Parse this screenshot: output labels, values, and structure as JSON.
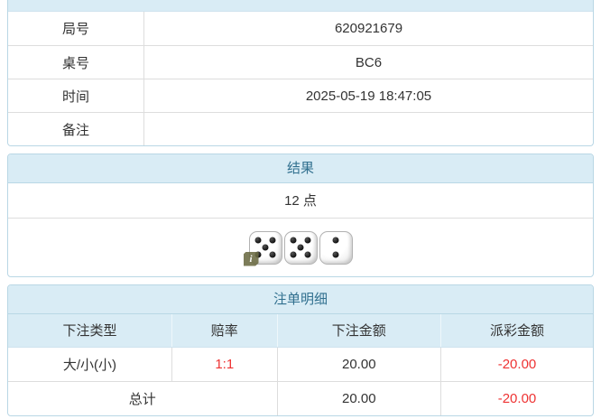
{
  "info_table": {
    "rows": [
      {
        "label": "局号",
        "value": "620921679"
      },
      {
        "label": "桌号",
        "value": "BC6"
      },
      {
        "label": "时间",
        "value": "2025-05-19 18:47:05"
      },
      {
        "label": "备注",
        "value": ""
      }
    ]
  },
  "result_panel": {
    "title": "结果",
    "points": "12 点",
    "dice": [
      5,
      5,
      2
    ],
    "info_badge": "i"
  },
  "bets_panel": {
    "title": "注单明细",
    "columns": [
      "下注类型",
      "赔率",
      "下注金额",
      "派彩金额"
    ],
    "rows": [
      {
        "type": "大/小(小)",
        "odds": "1:1",
        "bet_amount": "20.00",
        "payout_amount": "-20.00"
      }
    ],
    "total": {
      "label": "总计",
      "bet_amount": "20.00",
      "payout_amount": "-20.00"
    }
  },
  "colors": {
    "header_bg": "#d9ecf5",
    "header_text": "#31708f",
    "panel_border": "#b9d7e5",
    "row_divider": "#dddddd",
    "text": "#333333",
    "negative": "#ee3333"
  }
}
